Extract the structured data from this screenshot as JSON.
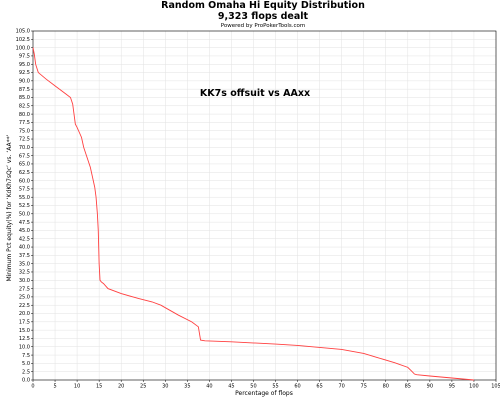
{
  "chart_data": {
    "type": "line",
    "title": "Random Omaha Hi Equity Distribution",
    "title_line2": "9,323 flops dealt",
    "subtitle": "Powered by ProPokerTools.com",
    "annotation": "KK7s offsuit vs AAxx",
    "xlabel": "Percentage of flops",
    "ylabel": "Minimum Pct equity(%) for ‘KdKh7sQc’ vs. ‘AA**’",
    "xlim": [
      0,
      105
    ],
    "ylim": [
      0,
      105
    ],
    "xticks": [
      "0",
      "5",
      "10",
      "15",
      "20",
      "25",
      "30",
      "35",
      "40",
      "45",
      "50",
      "55",
      "60",
      "65",
      "70",
      "75",
      "80",
      "85",
      "90",
      "95",
      "100",
      "105"
    ],
    "yticks": [
      "0.0",
      "2.5",
      "5.0",
      "7.5",
      "10.0",
      "12.5",
      "15.0",
      "17.5",
      "20.0",
      "22.5",
      "25.0",
      "27.5",
      "30.0",
      "32.5",
      "35.0",
      "37.5",
      "40.0",
      "42.5",
      "45.0",
      "47.5",
      "50.0",
      "52.5",
      "55.0",
      "57.5",
      "60.0",
      "62.5",
      "65.0",
      "67.5",
      "70.0",
      "72.5",
      "75.0",
      "77.5",
      "80.0",
      "82.5",
      "85.0",
      "87.5",
      "90.0",
      "92.5",
      "95.0",
      "97.5",
      "100.0",
      "102.5",
      "105.0"
    ],
    "grid": true,
    "line_color": "#ff4040",
    "series": [
      {
        "name": "",
        "x": [
          0,
          0.3,
          0.6,
          1.2,
          3,
          5,
          7.5,
          8.5,
          9,
          9.3,
          9.6,
          10,
          10.5,
          11,
          11.5,
          12,
          12.5,
          13,
          13.5,
          14,
          14.3,
          14.6,
          14.8,
          14.9,
          15,
          15.2,
          15.5,
          16,
          17,
          20,
          24,
          27,
          29,
          31,
          33,
          36,
          37.5,
          38,
          39,
          45,
          55,
          60,
          65,
          70,
          75,
          78,
          82,
          85,
          86,
          86.5,
          87,
          90,
          95,
          100
        ],
        "y": [
          100,
          98,
          95,
          92.5,
          90.5,
          88.5,
          86,
          85,
          83,
          80,
          77,
          76,
          74.5,
          73,
          70,
          68,
          66,
          64,
          61,
          58,
          55,
          50,
          45,
          40,
          35,
          30,
          29.5,
          29,
          27.5,
          26,
          24.5,
          23.5,
          22.5,
          21,
          19.5,
          17.5,
          16,
          12,
          11.8,
          11.5,
          10.8,
          10.4,
          9.8,
          9.2,
          8,
          6.8,
          5.2,
          3.8,
          2.5,
          1.8,
          1.6,
          1.2,
          0.6,
          0
        ]
      }
    ]
  }
}
